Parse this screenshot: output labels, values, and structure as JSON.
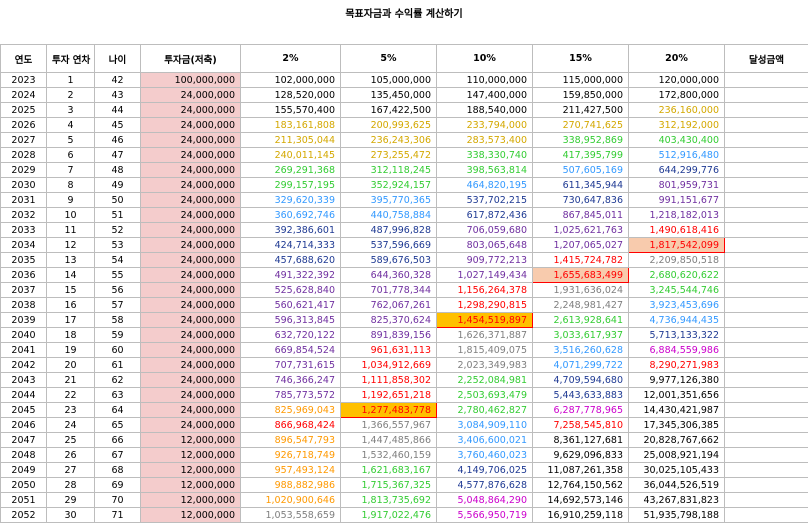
{
  "title": "목표자금과 수익률 계산하기",
  "headers": [
    "연도",
    "투자 연차",
    "나이",
    "투자금(저축)",
    "2%",
    "5%",
    "10%",
    "15%",
    "20%",
    "달성금액"
  ],
  "colors": {
    "black": "#000000",
    "orange": "#ff9900",
    "yellow": "#d4a800",
    "green": "#33cc33",
    "blue": "#3399ff",
    "navy": "#1f3a93",
    "purple": "#7030a0",
    "red": "#ff0000",
    "gray": "#7f7f7f",
    "magenta": "#cc00cc"
  },
  "rows": [
    {
      "year": "2023",
      "n": "1",
      "age": "42",
      "inv": "100,000,000",
      "v": [
        [
          "102,000,000",
          "black"
        ],
        [
          "105,000,000",
          "black"
        ],
        [
          "110,000,000",
          "black"
        ],
        [
          "115,000,000",
          "black"
        ],
        [
          "120,000,000",
          "black"
        ]
      ]
    },
    {
      "year": "2024",
      "n": "2",
      "age": "43",
      "inv": "24,000,000",
      "v": [
        [
          "128,520,000",
          "black"
        ],
        [
          "135,450,000",
          "black"
        ],
        [
          "147,400,000",
          "black"
        ],
        [
          "159,850,000",
          "black"
        ],
        [
          "172,800,000",
          "black"
        ]
      ]
    },
    {
      "year": "2025",
      "n": "3",
      "age": "44",
      "inv": "24,000,000",
      "v": [
        [
          "155,570,400",
          "black"
        ],
        [
          "167,422,500",
          "black"
        ],
        [
          "188,540,000",
          "black"
        ],
        [
          "211,427,500",
          "black"
        ],
        [
          "236,160,000",
          "yellow"
        ]
      ]
    },
    {
      "year": "2026",
      "n": "4",
      "age": "45",
      "inv": "24,000,000",
      "v": [
        [
          "183,161,808",
          "yellow"
        ],
        [
          "200,993,625",
          "yellow"
        ],
        [
          "233,794,000",
          "yellow"
        ],
        [
          "270,741,625",
          "yellow"
        ],
        [
          "312,192,000",
          "yellow"
        ]
      ]
    },
    {
      "year": "2027",
      "n": "5",
      "age": "46",
      "inv": "24,000,000",
      "v": [
        [
          "211,305,044",
          "yellow"
        ],
        [
          "236,243,306",
          "yellow"
        ],
        [
          "283,573,400",
          "yellow"
        ],
        [
          "338,952,869",
          "green"
        ],
        [
          "403,430,400",
          "green"
        ]
      ]
    },
    {
      "year": "2028",
      "n": "6",
      "age": "47",
      "inv": "24,000,000",
      "v": [
        [
          "240,011,145",
          "yellow"
        ],
        [
          "273,255,472",
          "yellow"
        ],
        [
          "338,330,740",
          "green"
        ],
        [
          "417,395,799",
          "green"
        ],
        [
          "512,916,480",
          "blue"
        ]
      ]
    },
    {
      "year": "2029",
      "n": "7",
      "age": "48",
      "inv": "24,000,000",
      "v": [
        [
          "269,291,368",
          "green"
        ],
        [
          "312,118,245",
          "green"
        ],
        [
          "398,563,814",
          "green"
        ],
        [
          "507,605,169",
          "blue"
        ],
        [
          "644,299,776",
          "navy"
        ]
      ]
    },
    {
      "year": "2030",
      "n": "8",
      "age": "49",
      "inv": "24,000,000",
      "v": [
        [
          "299,157,195",
          "green"
        ],
        [
          "352,924,157",
          "green"
        ],
        [
          "464,820,195",
          "blue"
        ],
        [
          "611,345,944",
          "navy"
        ],
        [
          "801,959,731",
          "purple"
        ]
      ]
    },
    {
      "year": "2031",
      "n": "9",
      "age": "50",
      "inv": "24,000,000",
      "v": [
        [
          "329,620,339",
          "blue"
        ],
        [
          "395,770,365",
          "blue"
        ],
        [
          "537,702,215",
          "navy"
        ],
        [
          "730,647,836",
          "navy"
        ],
        [
          "991,151,677",
          "purple"
        ]
      ]
    },
    {
      "year": "2032",
      "n": "10",
      "age": "51",
      "inv": "24,000,000",
      "v": [
        [
          "360,692,746",
          "blue"
        ],
        [
          "440,758,884",
          "blue"
        ],
        [
          "617,872,436",
          "navy"
        ],
        [
          "867,845,011",
          "purple"
        ],
        [
          "1,218,182,013",
          "purple"
        ]
      ]
    },
    {
      "year": "2033",
      "n": "11",
      "age": "52",
      "inv": "24,000,000",
      "v": [
        [
          "392,386,601",
          "navy"
        ],
        [
          "487,996,828",
          "navy"
        ],
        [
          "706,059,680",
          "purple"
        ],
        [
          "1,025,621,763",
          "purple"
        ],
        [
          "1,490,618,416",
          "red"
        ]
      ]
    },
    {
      "year": "2034",
      "n": "12",
      "age": "53",
      "inv": "24,000,000",
      "v": [
        [
          "424,714,333",
          "navy"
        ],
        [
          "537,596,669",
          "navy"
        ],
        [
          "803,065,648",
          "purple"
        ],
        [
          "1,207,065,027",
          "purple"
        ],
        [
          "1,817,542,099",
          "red"
        ]
      ]
    },
    {
      "year": "2035",
      "n": "13",
      "age": "54",
      "inv": "24,000,000",
      "v": [
        [
          "457,688,620",
          "navy"
        ],
        [
          "589,676,503",
          "navy"
        ],
        [
          "909,772,213",
          "purple"
        ],
        [
          "1,415,724,782",
          "red"
        ],
        [
          "2,209,850,518",
          "gray"
        ]
      ]
    },
    {
      "year": "2036",
      "n": "14",
      "age": "55",
      "inv": "24,000,000",
      "v": [
        [
          "491,322,392",
          "purple"
        ],
        [
          "644,360,328",
          "purple"
        ],
        [
          "1,027,149,434",
          "purple"
        ],
        [
          "1,655,683,499",
          "red"
        ],
        [
          "2,680,620,622",
          "green"
        ]
      ]
    },
    {
      "year": "2037",
      "n": "15",
      "age": "56",
      "inv": "24,000,000",
      "v": [
        [
          "525,628,840",
          "purple"
        ],
        [
          "701,778,344",
          "purple"
        ],
        [
          "1,156,264,378",
          "red"
        ],
        [
          "1,931,636,024",
          "gray"
        ],
        [
          "3,245,544,746",
          "green"
        ]
      ]
    },
    {
      "year": "2038",
      "n": "16",
      "age": "57",
      "inv": "24,000,000",
      "v": [
        [
          "560,621,417",
          "purple"
        ],
        [
          "762,067,261",
          "purple"
        ],
        [
          "1,298,290,815",
          "red"
        ],
        [
          "2,248,981,427",
          "gray"
        ],
        [
          "3,923,453,696",
          "blue"
        ]
      ]
    },
    {
      "year": "2039",
      "n": "17",
      "age": "58",
      "inv": "24,000,000",
      "v": [
        [
          "596,313,845",
          "purple"
        ],
        [
          "825,370,624",
          "purple"
        ],
        [
          "1,454,519,897",
          "red"
        ],
        [
          "2,613,928,641",
          "green"
        ],
        [
          "4,736,944,435",
          "blue"
        ]
      ]
    },
    {
      "year": "2040",
      "n": "18",
      "age": "59",
      "inv": "24,000,000",
      "v": [
        [
          "632,720,122",
          "purple"
        ],
        [
          "891,839,156",
          "purple"
        ],
        [
          "1,626,371,887",
          "gray"
        ],
        [
          "3,033,617,937",
          "green"
        ],
        [
          "5,713,133,322",
          "navy"
        ]
      ]
    },
    {
      "year": "2041",
      "n": "19",
      "age": "60",
      "inv": "24,000,000",
      "v": [
        [
          "669,854,524",
          "purple"
        ],
        [
          "961,631,113",
          "red"
        ],
        [
          "1,815,409,075",
          "gray"
        ],
        [
          "3,516,260,628",
          "blue"
        ],
        [
          "6,884,559,986",
          "magenta"
        ]
      ]
    },
    {
      "year": "2042",
      "n": "20",
      "age": "61",
      "inv": "24,000,000",
      "v": [
        [
          "707,731,615",
          "purple"
        ],
        [
          "1,034,912,669",
          "red"
        ],
        [
          "2,023,349,983",
          "gray"
        ],
        [
          "4,071,299,722",
          "blue"
        ],
        [
          "8,290,271,983",
          "red"
        ]
      ]
    },
    {
      "year": "2043",
      "n": "21",
      "age": "62",
      "inv": "24,000,000",
      "v": [
        [
          "746,366,247",
          "purple"
        ],
        [
          "1,111,858,302",
          "red"
        ],
        [
          "2,252,084,981",
          "green"
        ],
        [
          "4,709,594,680",
          "navy"
        ],
        [
          "9,977,126,380",
          "black"
        ]
      ]
    },
    {
      "year": "2044",
      "n": "22",
      "age": "63",
      "inv": "24,000,000",
      "v": [
        [
          "785,773,572",
          "purple"
        ],
        [
          "1,192,651,218",
          "red"
        ],
        [
          "2,503,693,479",
          "green"
        ],
        [
          "5,443,633,883",
          "navy"
        ],
        [
          "12,001,351,656",
          "black"
        ]
      ]
    },
    {
      "year": "2045",
      "n": "23",
      "age": "64",
      "inv": "24,000,000",
      "v": [
        [
          "825,969,043",
          "orange"
        ],
        [
          "1,277,483,778",
          "red"
        ],
        [
          "2,780,462,827",
          "green"
        ],
        [
          "6,287,778,965",
          "magenta"
        ],
        [
          "14,430,421,987",
          "black"
        ]
      ]
    },
    {
      "year": "2046",
      "n": "24",
      "age": "65",
      "inv": "24,000,000",
      "v": [
        [
          "866,968,424",
          "red"
        ],
        [
          "1,366,557,967",
          "gray"
        ],
        [
          "3,084,909,110",
          "blue"
        ],
        [
          "7,258,545,810",
          "red"
        ],
        [
          "17,345,306,385",
          "black"
        ]
      ]
    },
    {
      "year": "2047",
      "n": "25",
      "age": "66",
      "inv": "12,000,000",
      "v": [
        [
          "896,547,793",
          "orange"
        ],
        [
          "1,447,485,866",
          "gray"
        ],
        [
          "3,406,600,021",
          "blue"
        ],
        [
          "8,361,127,681",
          "black"
        ],
        [
          "20,828,767,662",
          "black"
        ]
      ]
    },
    {
      "year": "2048",
      "n": "26",
      "age": "67",
      "inv": "12,000,000",
      "v": [
        [
          "926,718,749",
          "orange"
        ],
        [
          "1,532,460,159",
          "gray"
        ],
        [
          "3,760,460,023",
          "blue"
        ],
        [
          "9,629,096,833",
          "black"
        ],
        [
          "25,008,921,194",
          "black"
        ]
      ]
    },
    {
      "year": "2049",
      "n": "27",
      "age": "68",
      "inv": "12,000,000",
      "v": [
        [
          "957,493,124",
          "orange"
        ],
        [
          "1,621,683,167",
          "green"
        ],
        [
          "4,149,706,025",
          "navy"
        ],
        [
          "11,087,261,358",
          "black"
        ],
        [
          "30,025,105,433",
          "black"
        ]
      ]
    },
    {
      "year": "2050",
      "n": "28",
      "age": "69",
      "inv": "12,000,000",
      "v": [
        [
          "988,882,986",
          "orange"
        ],
        [
          "1,715,367,325",
          "green"
        ],
        [
          "4,577,876,628",
          "navy"
        ],
        [
          "12,764,150,562",
          "black"
        ],
        [
          "36,044,526,519",
          "black"
        ]
      ]
    },
    {
      "year": "2051",
      "n": "29",
      "age": "70",
      "inv": "12,000,000",
      "v": [
        [
          "1,020,900,646",
          "orange"
        ],
        [
          "1,813,735,692",
          "green"
        ],
        [
          "5,048,864,290",
          "magenta"
        ],
        [
          "14,692,573,146",
          "black"
        ],
        [
          "43,267,831,823",
          "black"
        ]
      ]
    },
    {
      "year": "2052",
      "n": "30",
      "age": "71",
      "inv": "12,000,000",
      "v": [
        [
          "1,053,558,659",
          "gray"
        ],
        [
          "1,917,022,476",
          "green"
        ],
        [
          "5,566,950,719",
          "magenta"
        ],
        [
          "16,910,259,118",
          "black"
        ],
        [
          "51,935,798,188",
          "black"
        ]
      ]
    }
  ],
  "highlights": [
    {
      "row": 11,
      "col": 4,
      "style": "hl2"
    },
    {
      "row": 13,
      "col": 3,
      "style": "hl2"
    },
    {
      "row": 16,
      "col": 2,
      "style": "hl"
    },
    {
      "row": 22,
      "col": 1,
      "style": "hl"
    }
  ]
}
